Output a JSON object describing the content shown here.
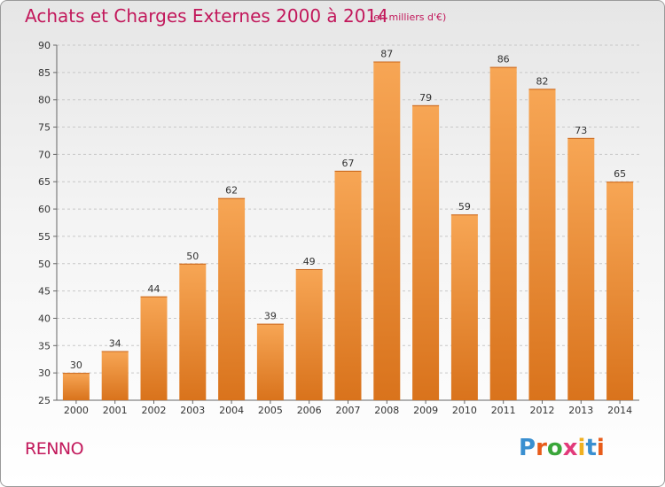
{
  "header": {
    "title": "Achats et Charges Externes 2000 à 2014",
    "subtitle": "(en milliers d'€)"
  },
  "footer": {
    "commune": "RENNO",
    "logo_letters": [
      "P",
      "r",
      "o",
      "x",
      "i",
      "t",
      "i"
    ],
    "logo_colors": [
      "#3a8fd0",
      "#e85c1a",
      "#3aa63a",
      "#e23a7a",
      "#f0b020",
      "#3a8fd0",
      "#e85c1a"
    ]
  },
  "colors": {
    "bar_top": "#f7a655",
    "bar_bottom": "#d9731c",
    "title": "#c2185b",
    "grid": "#c8c8c8"
  },
  "chart_data": {
    "type": "bar",
    "title": "Achats et Charges Externes 2000 à 2014",
    "subtitle": "(en milliers d'€)",
    "xlabel": "",
    "ylabel": "",
    "categories": [
      "2000",
      "2001",
      "2002",
      "2003",
      "2004",
      "2005",
      "2006",
      "2007",
      "2008",
      "2009",
      "2010",
      "2011",
      "2012",
      "2013",
      "2014"
    ],
    "values": [
      30,
      34,
      44,
      50,
      62,
      39,
      49,
      67,
      87,
      79,
      59,
      86,
      82,
      73,
      65
    ],
    "ylim": [
      25,
      90
    ],
    "yticks": [
      25,
      30,
      35,
      40,
      45,
      50,
      55,
      60,
      65,
      70,
      75,
      80,
      85,
      90
    ],
    "grid": "horizontal dashed",
    "legend": "none"
  }
}
